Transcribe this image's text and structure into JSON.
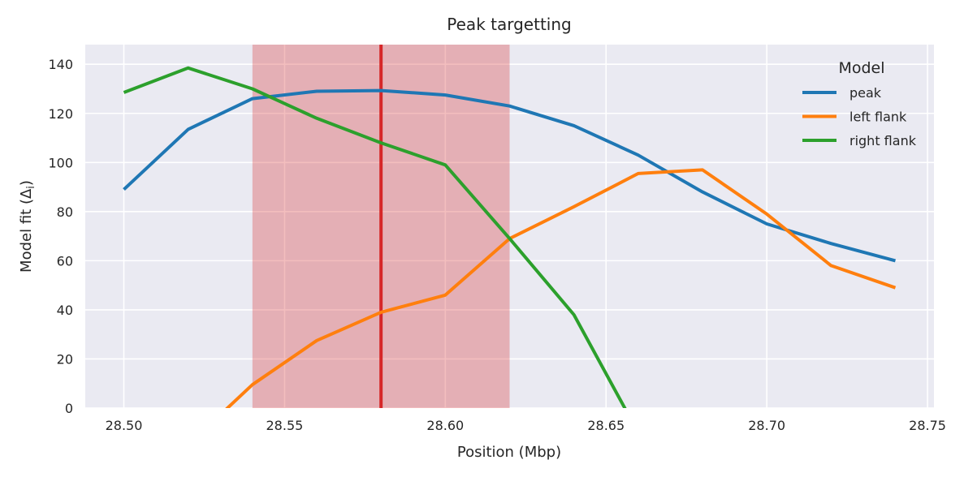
{
  "chart_data": {
    "type": "line",
    "title": "Peak targetting",
    "xlabel": "Position (Mbp)",
    "ylabel_prefix": "Model fit (Δ",
    "ylabel_sub": "i",
    "ylabel_suffix": ")",
    "xlim": [
      28.488,
      28.752
    ],
    "ylim": [
      0,
      148
    ],
    "x_ticks": [
      28.5,
      28.55,
      28.6,
      28.65,
      28.7,
      28.75
    ],
    "x_tick_labels": [
      "28.50",
      "28.55",
      "28.60",
      "28.65",
      "28.70",
      "28.75"
    ],
    "y_ticks": [
      0,
      20,
      40,
      60,
      80,
      100,
      120,
      140
    ],
    "y_tick_labels": [
      "0",
      "20",
      "40",
      "60",
      "80",
      "100",
      "120",
      "140"
    ],
    "grid": true,
    "shaded_region": {
      "x_start": 28.54,
      "x_end": 28.62,
      "color": "#d62728"
    },
    "vertical_line": {
      "x": 28.58,
      "color": "#d62728"
    },
    "legend": {
      "title": "Model",
      "placement": "top-right"
    },
    "series": [
      {
        "name": "peak",
        "color": "#1f77b4",
        "x": [
          28.5,
          28.52,
          28.54,
          28.56,
          28.58,
          28.6,
          28.62,
          28.64,
          28.66,
          28.68,
          28.7,
          28.72,
          28.74
        ],
        "y": [
          89,
          113.5,
          126,
          129,
          129.3,
          127.5,
          123,
          115,
          103,
          88,
          75,
          67,
          60
        ]
      },
      {
        "name": "left flank",
        "color": "#ff7f0e",
        "x": [
          28.52,
          28.54,
          28.56,
          28.58,
          28.6,
          28.62,
          28.64,
          28.66,
          28.68,
          28.7,
          28.72,
          28.74
        ],
        "y": [
          -15,
          9.5,
          27.5,
          39,
          46,
          69,
          82,
          95.5,
          97,
          79,
          58,
          49
        ]
      },
      {
        "name": "right flank",
        "color": "#2ca02c",
        "x": [
          28.5,
          28.52,
          28.54,
          28.56,
          28.58,
          28.6,
          28.62,
          28.64,
          28.66
        ],
        "y": [
          128.5,
          138.5,
          130,
          118,
          108,
          99,
          69,
          38,
          -10
        ]
      }
    ]
  }
}
